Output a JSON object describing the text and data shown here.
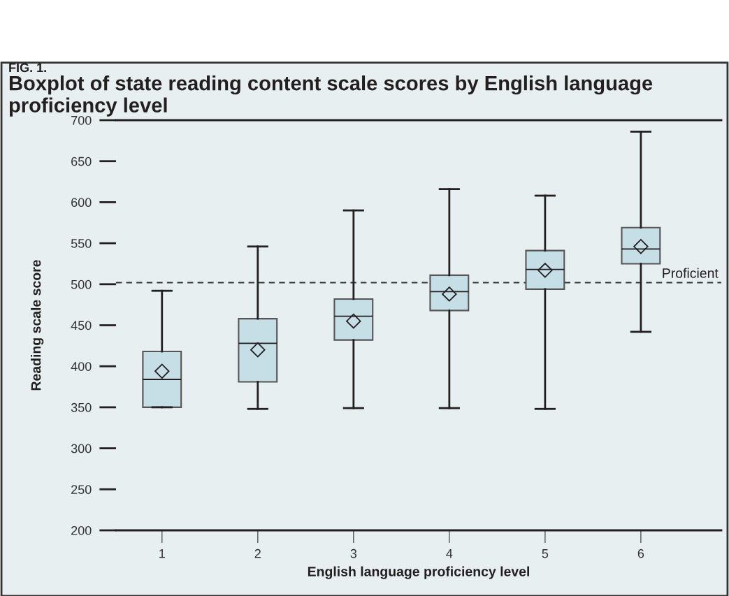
{
  "chart_data": {
    "type": "box",
    "title": "Boxplot of state reading content scale scores by English language proficiency level",
    "annotations": [
      "FIG. 1."
    ],
    "xlabel": "English language proficiency level",
    "ylabel": "Reading scale score",
    "categories": [
      "1",
      "2",
      "3",
      "4",
      "5",
      "6"
    ],
    "boxes": [
      {
        "low": 350,
        "q1": 350,
        "median": 384,
        "q3": 418,
        "high": 492,
        "mean": 394
      },
      {
        "low": 348,
        "q1": 381,
        "median": 428,
        "q3": 458,
        "high": 546,
        "mean": 420
      },
      {
        "low": 349,
        "q1": 432,
        "median": 461,
        "q3": 482,
        "high": 590,
        "mean": 455
      },
      {
        "low": 349,
        "q1": 468,
        "median": 491,
        "q3": 511,
        "high": 616,
        "mean": 488
      },
      {
        "low": 348,
        "q1": 494,
        "median": 518,
        "q3": 541,
        "high": 608,
        "mean": 517
      },
      {
        "low": 442,
        "q1": 525,
        "median": 543,
        "q3": 569,
        "high": 686,
        "mean": 546
      }
    ],
    "color": "#c6dfe6",
    "marker": "diamond",
    "ylim": [
      200,
      700
    ],
    "yticks": [
      200,
      250,
      300,
      350,
      400,
      450,
      500,
      550,
      600,
      650,
      700
    ],
    "ref_lines": [
      {
        "axis": "y",
        "value": 502,
        "label": "Proficient",
        "line_style": "dashed"
      }
    ],
    "grid": false
  }
}
